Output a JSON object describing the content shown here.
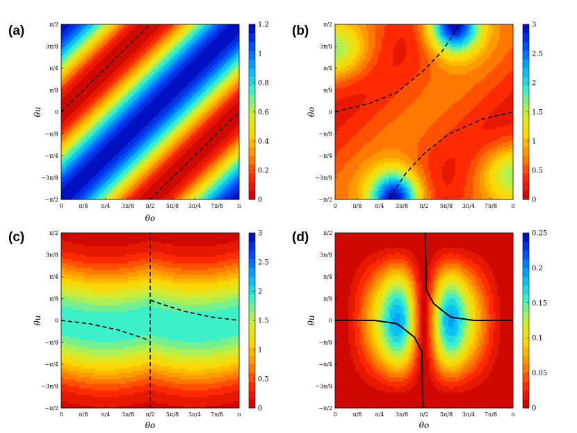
{
  "figure": {
    "x_tick_labels": [
      "0",
      "π/8",
      "π/4",
      "3π/8",
      "π/2",
      "5π/8",
      "3π/4",
      "7π/8",
      "π"
    ],
    "y_tick_labels": [
      "−π/2",
      "−3π/8",
      "−π/4",
      "−π/8",
      "0",
      "π/8",
      "π/4",
      "3π/8",
      "π/2"
    ],
    "colormap": "jet-reversed",
    "colormap_stops": [
      "#c40000",
      "#ff2a00",
      "#ff8c00",
      "#ffd700",
      "#c8f03c",
      "#3cf0c8",
      "#00b4ff",
      "#0050ff",
      "#0000b4"
    ]
  },
  "chart_data": [
    {
      "type": "heatmap",
      "panel_label": "(a)",
      "xlabel": "θo",
      "ylabel": "θu",
      "xlim": [
        0,
        3.14159
      ],
      "ylim": [
        -1.5708,
        1.5708
      ],
      "colorbar": {
        "range": [
          0,
          1.2
        ],
        "ticks": [
          "0",
          "0.2",
          "0.4",
          "0.6",
          "0.8",
          "1",
          "1.2"
        ]
      },
      "contour_lines": [
        {
          "style": "dashed",
          "points": [
            [
              0,
              0.0
            ],
            [
              0.393,
              0.393
            ],
            [
              0.785,
              0.785
            ],
            [
              1.178,
              1.178
            ],
            [
              1.571,
              1.571
            ]
          ]
        },
        {
          "style": "dashed",
          "points": [
            [
              1.571,
              -1.571
            ],
            [
              1.963,
              -1.178
            ],
            [
              2.356,
              -0.785
            ],
            [
              2.749,
              -0.393
            ],
            [
              3.1416,
              0.0
            ]
          ]
        }
      ]
    },
    {
      "type": "heatmap",
      "panel_label": "(b)",
      "xlabel": "",
      "ylabel": "θo",
      "xlim": [
        0,
        3.14159
      ],
      "ylim": [
        -1.5708,
        1.5708
      ],
      "colorbar": {
        "range": [
          0,
          3
        ],
        "ticks": [
          "0",
          "0.5",
          "1",
          "1.5",
          "2",
          "2.5",
          "3"
        ]
      },
      "contour_lines": [
        {
          "style": "dashed",
          "points": [
            [
              0,
              0.0
            ],
            [
              0.6,
              0.15
            ],
            [
              1.1,
              0.35
            ],
            [
              1.571,
              0.75
            ],
            [
              1.9,
              1.1
            ],
            [
              2.2,
              1.571
            ]
          ]
        },
        {
          "style": "dashed",
          "points": [
            [
              0.95,
              -1.571
            ],
            [
              1.25,
              -1.1
            ],
            [
              1.571,
              -0.75
            ],
            [
              2.0,
              -0.4
            ],
            [
              2.6,
              -0.13
            ],
            [
              3.1416,
              0.0
            ]
          ]
        }
      ]
    },
    {
      "type": "heatmap",
      "panel_label": "(c)",
      "xlabel": "θo",
      "ylabel": "θu",
      "xlim": [
        0,
        3.14159
      ],
      "ylim": [
        -1.5708,
        1.5708
      ],
      "colorbar": {
        "range": [
          0,
          3
        ],
        "ticks": [
          "0",
          "0.5",
          "1",
          "1.5",
          "2",
          "2.5",
          "3"
        ]
      },
      "contour_lines": [
        {
          "style": "dashed",
          "points": [
            [
              0,
              0.0
            ],
            [
              0.5,
              -0.06
            ],
            [
              1.0,
              -0.17
            ],
            [
              1.4,
              -0.3
            ],
            [
              1.56,
              -0.36
            ]
          ]
        },
        {
          "style": "dashed",
          "points": [
            [
              1.58,
              0.36
            ],
            [
              1.75,
              0.3
            ],
            [
              2.15,
              0.17
            ],
            [
              2.65,
              0.06
            ],
            [
              3.1416,
              0.0
            ]
          ]
        },
        {
          "style": "dashed",
          "points": [
            [
              1.571,
              -1.571
            ],
            [
              1.571,
              1.571
            ]
          ]
        }
      ]
    },
    {
      "type": "heatmap",
      "panel_label": "(d)",
      "xlabel": "θo",
      "ylabel": "θu",
      "xlim": [
        0,
        3.14159
      ],
      "ylim": [
        -1.5708,
        1.5708
      ],
      "colorbar": {
        "range": [
          0,
          0.25
        ],
        "ticks": [
          "0",
          "0.05",
          "0.1",
          "0.15",
          "0.2",
          "0.25"
        ]
      },
      "contour_lines": [
        {
          "style": "solid",
          "points": [
            [
              0,
              0.0
            ],
            [
              0.7,
              0.0
            ],
            [
              1.1,
              -0.06
            ],
            [
              1.4,
              -0.3
            ],
            [
              1.53,
              -0.55
            ],
            [
              1.55,
              -1.571
            ]
          ]
        },
        {
          "style": "solid",
          "points": [
            [
              1.59,
              1.571
            ],
            [
              1.61,
              0.55
            ],
            [
              1.74,
              0.3
            ],
            [
              2.04,
              0.06
            ],
            [
              2.45,
              0.0
            ],
            [
              3.1416,
              0.0
            ]
          ]
        }
      ]
    }
  ]
}
